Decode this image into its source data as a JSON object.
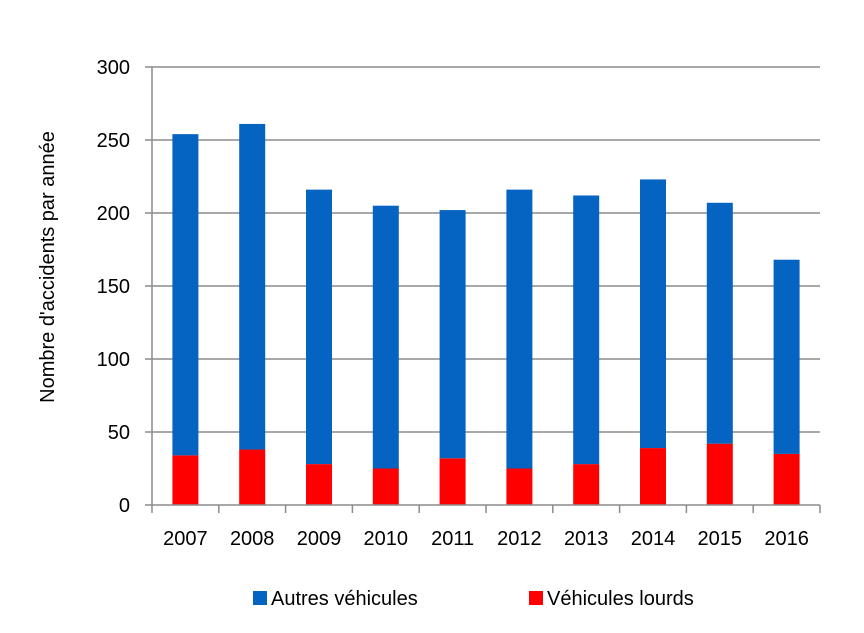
{
  "chart_data": {
    "type": "bar",
    "stacked": true,
    "title": "",
    "xlabel": "",
    "ylabel": "Nombre d'accidents par année",
    "ylim": [
      0,
      300
    ],
    "yticks": [
      0,
      50,
      100,
      150,
      200,
      250,
      300
    ],
    "grid": true,
    "legend_position": "bottom",
    "categories": [
      "2007",
      "2008",
      "2009",
      "2010",
      "2011",
      "2012",
      "2013",
      "2014",
      "2015",
      "2016"
    ],
    "series": [
      {
        "name": "Véhicules lourds",
        "color": "#ff0000",
        "values": [
          34,
          38,
          28,
          25,
          32,
          25,
          28,
          39,
          42,
          35
        ]
      },
      {
        "name": "Autres véhicules",
        "color": "#0563c1",
        "values": [
          220,
          223,
          188,
          180,
          170,
          191,
          184,
          184,
          165,
          133
        ]
      }
    ],
    "legend_order": [
      "Autres véhicules",
      "Véhicules lourds"
    ]
  }
}
